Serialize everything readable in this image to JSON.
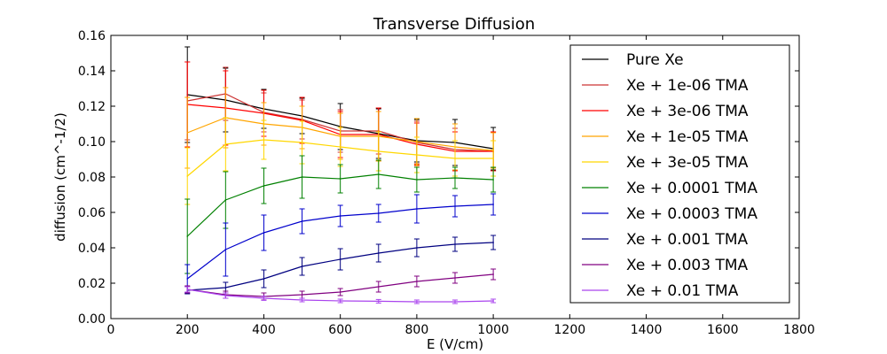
{
  "chart_data": {
    "type": "line",
    "title": "Transverse Diffusion",
    "xlabel": "E (V/cm)",
    "ylabel": "diffusion (cm^-1/2)",
    "xlim": [
      0,
      1800
    ],
    "ylim": [
      0,
      0.16
    ],
    "xticks": [
      0,
      200,
      400,
      600,
      800,
      1000,
      1200,
      1400,
      1600,
      1800
    ],
    "yticks": [
      0.0,
      0.02,
      0.04,
      0.06,
      0.08,
      0.1,
      0.12,
      0.14,
      0.16
    ],
    "xtick_labels": [
      "0",
      "200",
      "400",
      "600",
      "800",
      "1000",
      "1200",
      "1400",
      "1600",
      "1800"
    ],
    "ytick_labels": [
      "0.00",
      "0.02",
      "0.04",
      "0.06",
      "0.08",
      "0.10",
      "0.12",
      "0.14",
      "0.16"
    ],
    "grid": false,
    "legend_position": "top-right",
    "x": [
      200,
      300,
      400,
      500,
      600,
      700,
      800,
      900,
      1000
    ],
    "series": [
      {
        "name": "Pure Xe",
        "color": "#000000",
        "values": [
          0.1265,
          0.1235,
          0.1185,
          0.1145,
          0.1085,
          0.1045,
          0.1005,
          0.0995,
          0.096
        ],
        "errors": [
          0.027,
          0.018,
          0.011,
          0.01,
          0.013,
          0.014,
          0.012,
          0.013,
          0.012
        ]
      },
      {
        "name": "Xe + 1e-06 TMA",
        "color": "#cc3333",
        "values": [
          0.123,
          0.127,
          0.1165,
          0.1125,
          0.106,
          0.106,
          0.0995,
          0.0955,
          0.0945
        ],
        "errors": [
          0.022,
          0.015,
          0.011,
          0.011,
          0.012,
          0.013,
          0.012,
          0.012,
          0.011
        ]
      },
      {
        "name": "Xe + 3e-06 TMA",
        "color": "#ff0000",
        "values": [
          0.121,
          0.119,
          0.116,
          0.112,
          0.104,
          0.104,
          0.0985,
          0.0945,
          0.0945
        ],
        "errors": [
          0.024,
          0.021,
          0.013,
          0.013,
          0.013,
          0.015,
          0.012,
          0.011,
          0.011
        ]
      },
      {
        "name": "Xe + 1e-05 TMA",
        "color": "#ffa500",
        "values": [
          0.105,
          0.1135,
          0.11,
          0.108,
          0.103,
          0.103,
          0.1,
          0.097,
          0.095
        ],
        "errors": [
          0.02,
          0.017,
          0.012,
          0.012,
          0.013,
          0.014,
          0.013,
          0.013,
          0.01
        ]
      },
      {
        "name": "Xe + 3e-05 TMA",
        "color": "#ffd700",
        "values": [
          0.0805,
          0.0985,
          0.101,
          0.0995,
          0.097,
          0.0945,
          0.0925,
          0.0905,
          0.0905
        ],
        "errors": [
          0.016,
          0.015,
          0.011,
          0.012,
          0.011,
          0.011,
          0.01,
          0.01,
          0.01
        ]
      },
      {
        "name": "Xe + 0.0001 TMA",
        "color": "#008000",
        "values": [
          0.0465,
          0.067,
          0.075,
          0.08,
          0.079,
          0.0815,
          0.0785,
          0.0795,
          0.0785
        ],
        "errors": [
          0.021,
          0.016,
          0.01,
          0.012,
          0.008,
          0.008,
          0.007,
          0.006,
          0.007
        ]
      },
      {
        "name": "Xe + 0.0003 TMA",
        "color": "#0000cc",
        "values": [
          0.0225,
          0.039,
          0.0485,
          0.055,
          0.058,
          0.0595,
          0.062,
          0.0635,
          0.0645
        ],
        "errors": [
          0.008,
          0.015,
          0.01,
          0.007,
          0.006,
          0.005,
          0.008,
          0.006,
          0.006
        ]
      },
      {
        "name": "Xe + 0.001 TMA",
        "color": "#000080",
        "values": [
          0.016,
          0.0175,
          0.0225,
          0.0295,
          0.0335,
          0.037,
          0.04,
          0.042,
          0.043
        ],
        "errors": [
          0.002,
          0.003,
          0.005,
          0.005,
          0.006,
          0.005,
          0.005,
          0.004,
          0.004
        ]
      },
      {
        "name": "Xe + 0.003 TMA",
        "color": "#800080",
        "values": [
          0.0165,
          0.0135,
          0.0125,
          0.0135,
          0.015,
          0.018,
          0.021,
          0.023,
          0.025
        ],
        "errors": [
          0.002,
          0.002,
          0.002,
          0.002,
          0.002,
          0.003,
          0.003,
          0.003,
          0.003
        ]
      },
      {
        "name": "Xe + 0.01 TMA",
        "color": "#aa44ee",
        "values": [
          0.0165,
          0.013,
          0.0115,
          0.0105,
          0.01,
          0.0098,
          0.0095,
          0.0095,
          0.01
        ],
        "errors": [
          0.0015,
          0.0015,
          0.0012,
          0.001,
          0.001,
          0.001,
          0.001,
          0.001,
          0.001
        ]
      }
    ]
  }
}
